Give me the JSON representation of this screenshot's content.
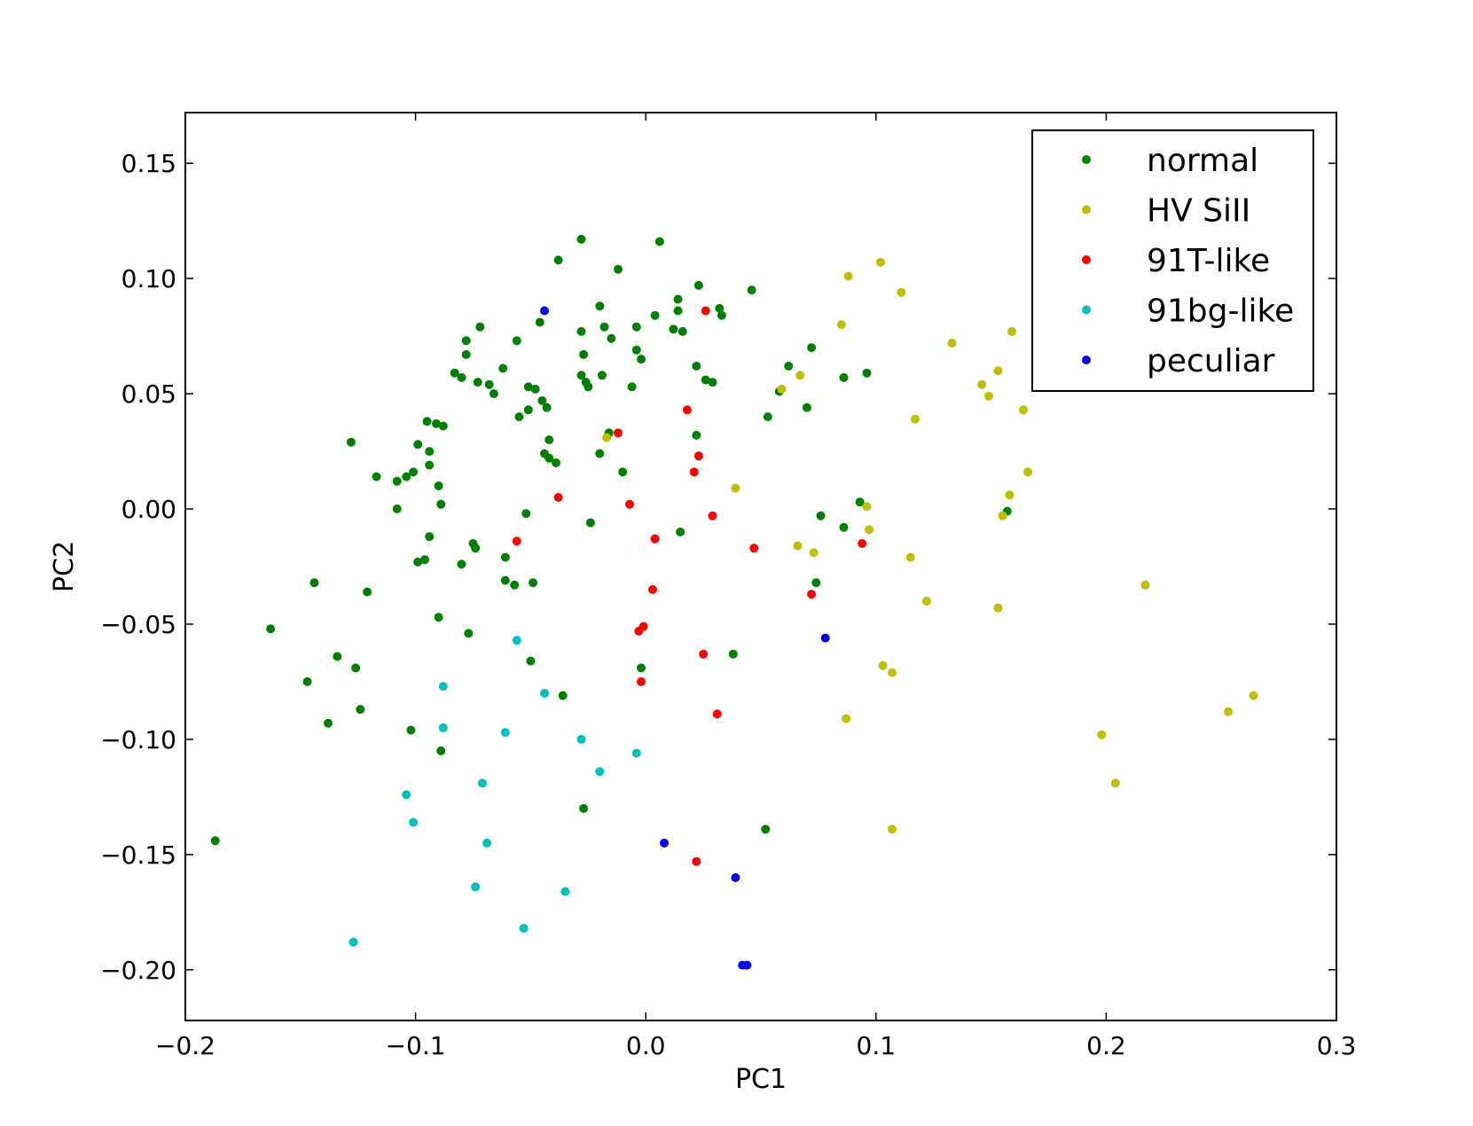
{
  "chart_data": {
    "type": "scatter",
    "xlabel": "PC1",
    "ylabel": "PC2",
    "xlim": [
      -0.2,
      0.3
    ],
    "ylim": [
      -0.222,
      0.172
    ],
    "xticks": [
      -0.2,
      -0.1,
      0.0,
      0.1,
      0.2,
      0.3
    ],
    "xtick_labels": [
      "−0.2",
      "−0.1",
      "0.0",
      "0.1",
      "0.2",
      "0.3"
    ],
    "yticks": [
      0.15,
      0.1,
      0.05,
      0.0,
      -0.05,
      -0.1,
      -0.15,
      -0.2
    ],
    "ytick_labels": [
      "0.15",
      "0.10",
      "0.05",
      "0.00",
      "−0.05",
      "−0.10",
      "−0.15",
      "−0.20"
    ],
    "grid": false,
    "legend_position": "top-right",
    "series": [
      {
        "name": "normal",
        "color": "#008000",
        "points": [
          [
            -0.187,
            -0.144
          ],
          [
            -0.163,
            -0.052
          ],
          [
            -0.147,
            -0.075
          ],
          [
            -0.144,
            -0.032
          ],
          [
            -0.138,
            -0.093
          ],
          [
            -0.134,
            -0.064
          ],
          [
            -0.128,
            0.029
          ],
          [
            -0.126,
            -0.069
          ],
          [
            -0.124,
            -0.087
          ],
          [
            -0.121,
            -0.036
          ],
          [
            -0.117,
            0.014
          ],
          [
            -0.108,
            0.012
          ],
          [
            -0.108,
            0.0
          ],
          [
            -0.104,
            0.014
          ],
          [
            -0.102,
            -0.096
          ],
          [
            -0.101,
            0.016
          ],
          [
            -0.099,
            0.028
          ],
          [
            -0.099,
            -0.023
          ],
          [
            -0.096,
            -0.022
          ],
          [
            -0.095,
            0.038
          ],
          [
            -0.094,
            0.025
          ],
          [
            -0.094,
            0.019
          ],
          [
            -0.094,
            -0.012
          ],
          [
            -0.091,
            0.037
          ],
          [
            -0.09,
            0.01
          ],
          [
            -0.09,
            -0.047
          ],
          [
            -0.089,
            0.002
          ],
          [
            -0.089,
            -0.105
          ],
          [
            -0.088,
            0.036
          ],
          [
            -0.083,
            0.059
          ],
          [
            -0.08,
            0.057
          ],
          [
            -0.08,
            -0.024
          ],
          [
            -0.078,
            0.073
          ],
          [
            -0.078,
            0.067
          ],
          [
            -0.077,
            -0.054
          ],
          [
            -0.075,
            -0.015
          ],
          [
            -0.074,
            -0.017
          ],
          [
            -0.073,
            0.055
          ],
          [
            -0.072,
            0.079
          ],
          [
            -0.068,
            0.054
          ],
          [
            -0.066,
            0.05
          ],
          [
            -0.062,
            0.061
          ],
          [
            -0.061,
            -0.031
          ],
          [
            -0.061,
            -0.021
          ],
          [
            -0.057,
            -0.033
          ],
          [
            -0.056,
            0.073
          ],
          [
            -0.055,
            0.04
          ],
          [
            -0.052,
            -0.002
          ],
          [
            -0.051,
            0.053
          ],
          [
            -0.051,
            0.043
          ],
          [
            -0.05,
            -0.066
          ],
          [
            -0.049,
            -0.032
          ],
          [
            -0.048,
            0.052
          ],
          [
            -0.046,
            0.081
          ],
          [
            -0.045,
            0.047
          ],
          [
            -0.044,
            0.024
          ],
          [
            -0.043,
            0.044
          ],
          [
            -0.042,
            0.03
          ],
          [
            -0.042,
            0.022
          ],
          [
            -0.039,
            0.02
          ],
          [
            -0.038,
            0.108
          ],
          [
            -0.036,
            -0.081
          ],
          [
            -0.028,
            0.117
          ],
          [
            -0.028,
            0.058
          ],
          [
            -0.028,
            0.077
          ],
          [
            -0.027,
            0.067
          ],
          [
            -0.027,
            -0.13
          ],
          [
            -0.026,
            0.055
          ],
          [
            -0.025,
            0.053
          ],
          [
            -0.024,
            -0.006
          ],
          [
            -0.02,
            0.088
          ],
          [
            -0.02,
            0.024
          ],
          [
            -0.019,
            0.058
          ],
          [
            -0.018,
            0.079
          ],
          [
            -0.016,
            0.033
          ],
          [
            -0.015,
            0.074
          ],
          [
            -0.012,
            0.104
          ],
          [
            -0.01,
            0.016
          ],
          [
            -0.006,
            0.053
          ],
          [
            -0.004,
            0.069
          ],
          [
            -0.004,
            0.079
          ],
          [
            -0.002,
            0.065
          ],
          [
            -0.002,
            -0.069
          ],
          [
            0.004,
            0.084
          ],
          [
            0.006,
            0.116
          ],
          [
            0.012,
            0.078
          ],
          [
            0.014,
            0.091
          ],
          [
            0.014,
            0.086
          ],
          [
            0.015,
            -0.01
          ],
          [
            0.016,
            0.077
          ],
          [
            0.022,
            0.062
          ],
          [
            0.022,
            0.032
          ],
          [
            0.023,
            0.097
          ],
          [
            0.026,
            0.056
          ],
          [
            0.029,
            0.055
          ],
          [
            0.032,
            0.087
          ],
          [
            0.033,
            0.084
          ],
          [
            0.038,
            -0.063
          ],
          [
            0.046,
            0.095
          ],
          [
            0.052,
            -0.139
          ],
          [
            0.053,
            0.04
          ],
          [
            0.058,
            0.051
          ],
          [
            0.062,
            0.062
          ],
          [
            0.07,
            0.044
          ],
          [
            0.072,
            0.07
          ],
          [
            0.074,
            -0.032
          ],
          [
            0.076,
            -0.003
          ],
          [
            0.086,
            -0.008
          ],
          [
            0.086,
            0.057
          ],
          [
            0.093,
            0.003
          ],
          [
            0.096,
            0.059
          ],
          [
            0.157,
            -0.001
          ]
        ]
      },
      {
        "name": "HV SiII",
        "color": "#bfbf00",
        "points": [
          [
            -0.017,
            0.031
          ],
          [
            0.039,
            0.009
          ],
          [
            0.059,
            0.052
          ],
          [
            0.066,
            -0.016
          ],
          [
            0.067,
            0.058
          ],
          [
            0.073,
            -0.019
          ],
          [
            0.085,
            0.08
          ],
          [
            0.087,
            -0.091
          ],
          [
            0.088,
            0.101
          ],
          [
            0.096,
            0.001
          ],
          [
            0.097,
            -0.009
          ],
          [
            0.102,
            0.107
          ],
          [
            0.103,
            -0.068
          ],
          [
            0.107,
            -0.071
          ],
          [
            0.107,
            -0.139
          ],
          [
            0.111,
            0.094
          ],
          [
            0.115,
            -0.021
          ],
          [
            0.117,
            0.039
          ],
          [
            0.122,
            -0.04
          ],
          [
            0.133,
            0.072
          ],
          [
            0.146,
            0.054
          ],
          [
            0.149,
            0.049
          ],
          [
            0.153,
            0.06
          ],
          [
            0.153,
            -0.043
          ],
          [
            0.155,
            -0.003
          ],
          [
            0.158,
            0.006
          ],
          [
            0.159,
            0.077
          ],
          [
            0.164,
            0.043
          ],
          [
            0.166,
            0.016
          ],
          [
            0.198,
            -0.098
          ],
          [
            0.204,
            -0.119
          ],
          [
            0.217,
            -0.033
          ],
          [
            0.253,
            -0.088
          ],
          [
            0.264,
            -0.081
          ]
        ]
      },
      {
        "name": "91T-like",
        "color": "#ff0000",
        "points": [
          [
            -0.056,
            -0.014
          ],
          [
            -0.038,
            0.005
          ],
          [
            -0.012,
            0.033
          ],
          [
            -0.007,
            0.002
          ],
          [
            -0.003,
            -0.053
          ],
          [
            -0.002,
            -0.075
          ],
          [
            -0.001,
            -0.051
          ],
          [
            0.003,
            -0.035
          ],
          [
            0.004,
            -0.013
          ],
          [
            0.018,
            0.043
          ],
          [
            0.021,
            0.016
          ],
          [
            0.022,
            -0.153
          ],
          [
            0.023,
            0.023
          ],
          [
            0.025,
            -0.063
          ],
          [
            0.026,
            0.086
          ],
          [
            0.029,
            -0.003
          ],
          [
            0.031,
            -0.089
          ],
          [
            0.047,
            -0.017
          ],
          [
            0.072,
            -0.037
          ],
          [
            0.094,
            -0.015
          ]
        ]
      },
      {
        "name": "91bg-like",
        "color": "#00bfbf",
        "points": [
          [
            -0.127,
            -0.188
          ],
          [
            -0.104,
            -0.124
          ],
          [
            -0.101,
            -0.136
          ],
          [
            -0.088,
            -0.077
          ],
          [
            -0.088,
            -0.095
          ],
          [
            -0.074,
            -0.164
          ],
          [
            -0.071,
            -0.119
          ],
          [
            -0.069,
            -0.145
          ],
          [
            -0.061,
            -0.097
          ],
          [
            -0.056,
            -0.057
          ],
          [
            -0.053,
            -0.182
          ],
          [
            -0.044,
            -0.08
          ],
          [
            -0.035,
            -0.166
          ],
          [
            -0.028,
            -0.1
          ],
          [
            -0.02,
            -0.114
          ],
          [
            -0.004,
            -0.106
          ]
        ]
      },
      {
        "name": "peculiar",
        "color": "#0000ff",
        "points": [
          [
            -0.044,
            0.086
          ],
          [
            0.008,
            -0.145
          ],
          [
            0.039,
            -0.16
          ],
          [
            0.042,
            -0.198
          ],
          [
            0.044,
            -0.198
          ],
          [
            0.078,
            -0.056
          ]
        ]
      }
    ]
  }
}
